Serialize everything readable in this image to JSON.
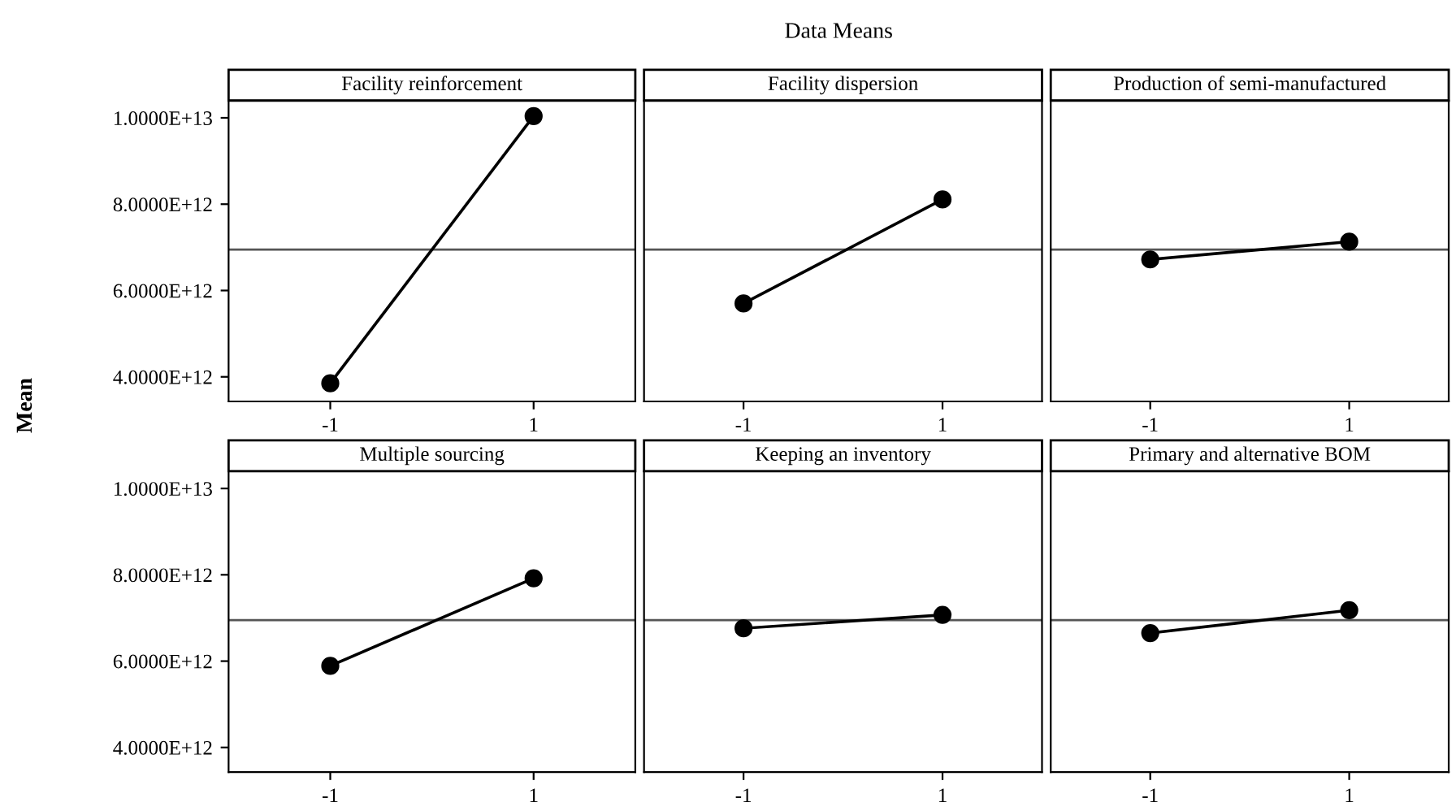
{
  "chart_data": [
    {
      "type": "line",
      "title": "Facility reinforcement",
      "ylabel": "Mean",
      "annotations": [
        "Data Means"
      ],
      "categories": [
        "-1",
        "1"
      ],
      "series": [
        {
          "color": "#000000",
          "values": [
            3850000000000.0,
            10040000000000.0
          ]
        }
      ],
      "ylim": [
        3430000000000.0,
        10400000000000.0
      ],
      "yticks": [
        {
          "value": 4000000000000.0,
          "label": "4.0000E+12"
        },
        {
          "value": 6000000000000.0,
          "label": "6.0000E+12"
        },
        {
          "value": 8000000000000.0,
          "label": "8.0000E+12"
        },
        {
          "value": 10000000000000.0,
          "label": "1.0000E+13"
        }
      ],
      "ref_lines": [
        {
          "axis": "y",
          "value": 6950000000000.0,
          "color": "#555555"
        }
      ],
      "marker": "circle",
      "line_style": "solid",
      "grid": false,
      "legend": false
    },
    {
      "type": "line",
      "title": "Facility dispersion",
      "categories": [
        "-1",
        "1"
      ],
      "series": [
        {
          "color": "#000000",
          "values": [
            5700000000000.0,
            8110000000000.0
          ]
        }
      ],
      "ylim": [
        3430000000000.0,
        10400000000000.0
      ],
      "tick_labels": "x",
      "ref_lines": [
        {
          "axis": "y",
          "value": 6950000000000.0,
          "color": "#555555"
        }
      ],
      "marker": "circle",
      "line_style": "solid",
      "grid": false,
      "legend": false
    },
    {
      "type": "line",
      "title": "Production of semi-manufactured",
      "categories": [
        "-1",
        "1"
      ],
      "series": [
        {
          "color": "#000000",
          "values": [
            6720000000000.0,
            7130000000000.0
          ]
        }
      ],
      "ylim": [
        3430000000000.0,
        10400000000000.0
      ],
      "tick_labels": "x",
      "ref_lines": [
        {
          "axis": "y",
          "value": 6950000000000.0,
          "color": "#555555"
        }
      ],
      "marker": "circle",
      "line_style": "solid",
      "grid": false,
      "legend": false
    },
    {
      "type": "line",
      "title": "Multiple sourcing",
      "categories": [
        "-1",
        "1"
      ],
      "series": [
        {
          "color": "#000000",
          "values": [
            5890000000000.0,
            7920000000000.0
          ]
        }
      ],
      "ylim": [
        3430000000000.0,
        10400000000000.0
      ],
      "yticks": [
        {
          "value": 4000000000000.0,
          "label": "4.0000E+12"
        },
        {
          "value": 6000000000000.0,
          "label": "6.0000E+12"
        },
        {
          "value": 8000000000000.0,
          "label": "8.0000E+12"
        },
        {
          "value": 10000000000000.0,
          "label": "1.0000E+13"
        }
      ],
      "ref_lines": [
        {
          "axis": "y",
          "value": 6950000000000.0,
          "color": "#555555"
        }
      ],
      "marker": "circle",
      "line_style": "solid",
      "grid": false,
      "legend": false
    },
    {
      "type": "line",
      "title": "Keeping an inventory",
      "categories": [
        "-1",
        "1"
      ],
      "series": [
        {
          "color": "#000000",
          "values": [
            6760000000000.0,
            7070000000000.0
          ]
        }
      ],
      "ylim": [
        3430000000000.0,
        10400000000000.0
      ],
      "tick_labels": "x",
      "ref_lines": [
        {
          "axis": "y",
          "value": 6950000000000.0,
          "color": "#555555"
        }
      ],
      "marker": "circle",
      "line_style": "solid",
      "grid": false,
      "legend": false
    },
    {
      "type": "line",
      "title": "Primary and alternative BOM",
      "categories": [
        "-1",
        "1"
      ],
      "series": [
        {
          "color": "#000000",
          "values": [
            6650000000000.0,
            7180000000000.0
          ]
        }
      ],
      "ylim": [
        3430000000000.0,
        10400000000000.0
      ],
      "tick_labels": "x",
      "ref_lines": [
        {
          "axis": "y",
          "value": 6950000000000.0,
          "color": "#555555"
        }
      ],
      "marker": "circle",
      "line_style": "solid",
      "grid": false,
      "legend": false
    }
  ]
}
